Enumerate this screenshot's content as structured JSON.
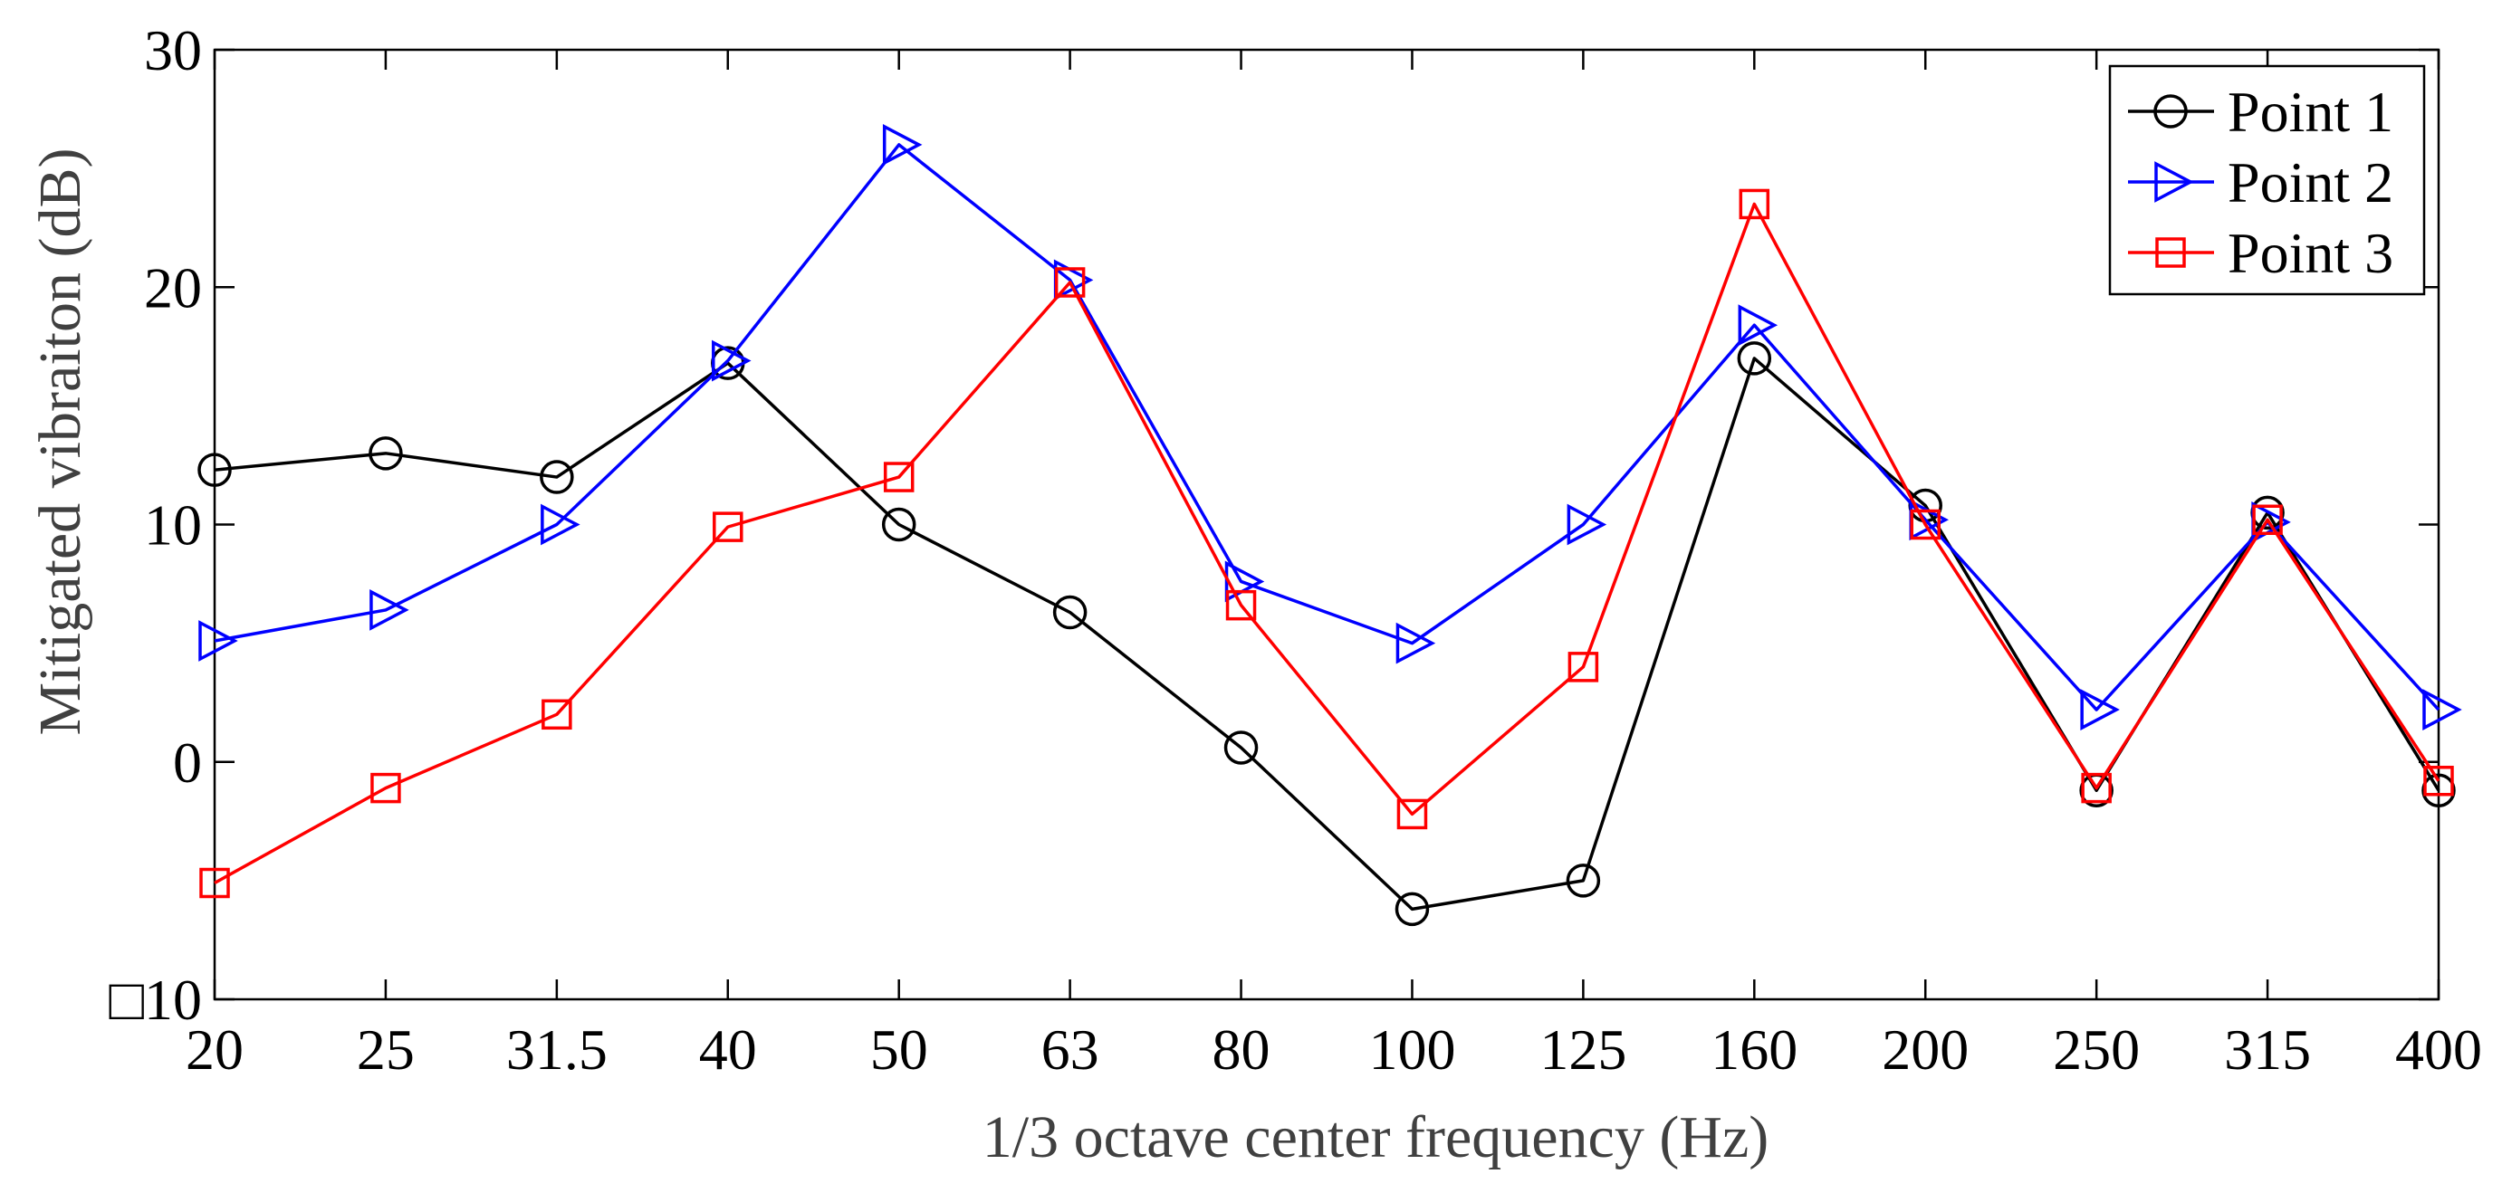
{
  "chart_data": {
    "type": "line",
    "title": "",
    "xlabel": "1/3 octave center frequency (Hz)",
    "ylabel": "Mitigated vibraiton (dB)",
    "categories": [
      "20",
      "25",
      "31.5",
      "40",
      "50",
      "63",
      "80",
      "100",
      "125",
      "160",
      "200",
      "250",
      "315",
      "400"
    ],
    "ylim": [
      -10,
      30
    ],
    "yticks": [
      -10,
      0,
      10,
      20,
      30
    ],
    "ytick_labels": [
      "□10",
      "0",
      "10",
      "20",
      "30"
    ],
    "grid": false,
    "legend_position": "top-right",
    "series": [
      {
        "name": "Point 1",
        "color": "#000000",
        "marker": "circle",
        "values": [
          12.3,
          13.0,
          12.0,
          16.8,
          10.0,
          6.3,
          0.6,
          -6.2,
          -5.0,
          17.0,
          10.8,
          -1.2,
          10.5,
          -1.2
        ]
      },
      {
        "name": "Point 2",
        "color": "#0000ff",
        "marker": "triangle-right",
        "values": [
          5.1,
          6.4,
          10.0,
          16.9,
          26.0,
          20.3,
          7.6,
          5.0,
          10.0,
          18.4,
          10.2,
          2.2,
          10.1,
          2.2
        ]
      },
      {
        "name": "Point 3",
        "color": "#ff0000",
        "marker": "square",
        "values": [
          -5.1,
          -1.1,
          2.0,
          9.9,
          12.0,
          20.2,
          6.6,
          -2.2,
          4.0,
          23.5,
          10.0,
          -1.1,
          10.2,
          -0.8
        ]
      }
    ]
  }
}
